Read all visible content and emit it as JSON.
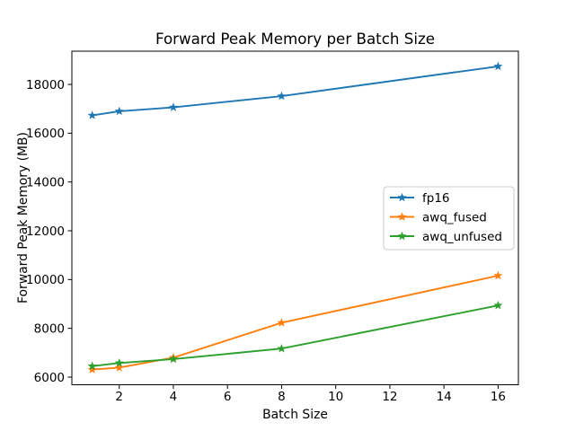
{
  "figure": {
    "background": "#ffffff",
    "text_color": "#000000",
    "spine_color": "#000000",
    "legend_border_color": "#cccccc"
  },
  "chart_data": {
    "type": "line",
    "title": "Forward Peak Memory per Batch Size",
    "xlabel": "Batch Size",
    "ylabel": "Forward Peak Memory (MB)",
    "x": [
      1,
      2,
      4,
      8,
      16
    ],
    "series": [
      {
        "name": "fp16",
        "color": "#1f77b4",
        "marker": "star",
        "values": [
          16730,
          16900,
          17060,
          17520,
          18740
        ]
      },
      {
        "name": "awq_fused",
        "color": "#ff7f0e",
        "marker": "star",
        "values": [
          6310,
          6390,
          6800,
          8230,
          10160
        ]
      },
      {
        "name": "awq_unfused",
        "color": "#2ca02c",
        "marker": "star",
        "values": [
          6450,
          6580,
          6740,
          7170,
          8940
        ]
      }
    ],
    "xlim": [
      0.25,
      16.75
    ],
    "ylim": [
      5688,
      19362
    ],
    "xticks": [
      2,
      4,
      6,
      8,
      10,
      12,
      14,
      16
    ],
    "yticks": [
      6000,
      8000,
      10000,
      12000,
      14000,
      16000,
      18000
    ],
    "grid": false,
    "legend": {
      "position": "center-right",
      "entries": [
        "fp16",
        "awq_fused",
        "awq_unfused"
      ]
    }
  }
}
